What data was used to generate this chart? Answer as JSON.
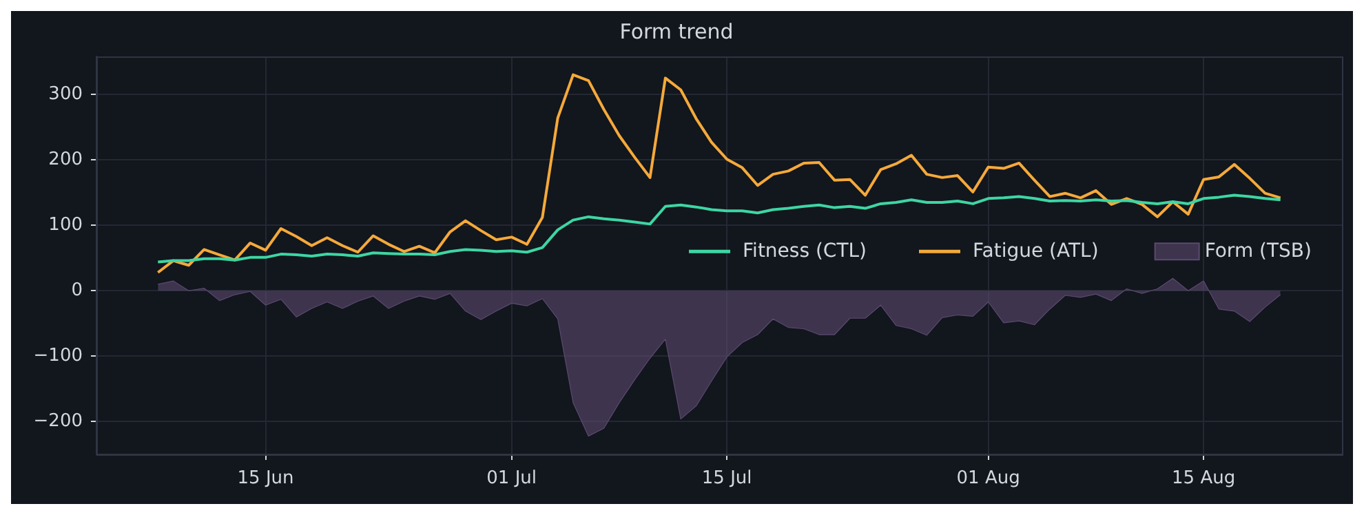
{
  "chart_data": {
    "type": "line",
    "title": "Form trend",
    "x": [
      "--06-08",
      "--06-09",
      "--06-10",
      "--06-11",
      "--06-12",
      "--06-13",
      "--06-14",
      "--06-15",
      "--06-16",
      "--06-17",
      "--06-18",
      "--06-19",
      "--06-20",
      "--06-21",
      "--06-22",
      "--06-23",
      "--06-24",
      "--06-25",
      "--06-26",
      "--06-27",
      "--06-28",
      "--06-29",
      "--06-30",
      "--07-01",
      "--07-02",
      "--07-03",
      "--07-04",
      "--07-05",
      "--07-06",
      "--07-07",
      "--07-08",
      "--07-09",
      "--07-10",
      "--07-11",
      "--07-12",
      "--07-13",
      "--07-14",
      "--07-15",
      "--07-16",
      "--07-17",
      "--07-18",
      "--07-19",
      "--07-20",
      "--07-21",
      "--07-22",
      "--07-23",
      "--07-24",
      "--07-25",
      "--07-26",
      "--07-27",
      "--07-28",
      "--07-29",
      "--07-30",
      "--07-31",
      "--08-01",
      "--08-02",
      "--08-03",
      "--08-04",
      "--08-05",
      "--08-06",
      "--08-07",
      "--08-08",
      "--08-09",
      "--08-10",
      "--08-11",
      "--08-12",
      "--08-13",
      "--08-14",
      "--08-15",
      "--08-16",
      "--08-17",
      "--08-18",
      "--08-19",
      "--08-20"
    ],
    "series": [
      {
        "name": "Fitness (CTL)",
        "type": "line",
        "color": "#3dd6a3",
        "values": [
          44,
          46,
          46,
          49,
          49,
          47,
          51,
          51,
          56,
          55,
          53,
          56,
          55,
          53,
          58,
          57,
          56,
          56,
          55,
          60,
          63,
          62,
          60,
          61,
          59,
          66,
          93,
          108,
          113,
          110,
          108,
          105,
          102,
          129,
          131,
          128,
          124,
          122,
          122,
          119,
          124,
          126,
          129,
          131,
          127,
          129,
          126,
          133,
          135,
          139,
          135,
          135,
          137,
          133,
          141,
          142,
          144,
          141,
          137,
          138,
          137,
          139,
          137,
          138,
          135,
          133,
          136,
          133,
          141,
          143,
          146,
          144,
          141,
          139
        ]
      },
      {
        "name": "Fatigue (ATL)",
        "type": "line",
        "color": "#f5a93a",
        "values": [
          28,
          46,
          39,
          63,
          55,
          47,
          73,
          62,
          95,
          83,
          69,
          81,
          69,
          59,
          84,
          71,
          60,
          68,
          58,
          90,
          107,
          92,
          78,
          82,
          71,
          112,
          264,
          330,
          321,
          277,
          237,
          204,
          173,
          325,
          307,
          263,
          227,
          201,
          188,
          161,
          178,
          183,
          195,
          196,
          169,
          170,
          146,
          185,
          194,
          207,
          178,
          173,
          176,
          151,
          189,
          187,
          195,
          169,
          144,
          149,
          142,
          153,
          132,
          141,
          132,
          113,
          136,
          117,
          170,
          174,
          193,
          172,
          149,
          142
        ]
      },
      {
        "name": "Form (TSB)",
        "type": "area",
        "color": "#5b4a70",
        "values": [
          10,
          15,
          0,
          4,
          -15,
          -6,
          -1,
          -22,
          -13,
          -40,
          -27,
          -17,
          -27,
          -16,
          -8,
          -27,
          -16,
          -8,
          -13,
          -4,
          -31,
          -44,
          -31,
          -19,
          -23,
          -12,
          -43,
          -171,
          -222,
          -210,
          -171,
          -136,
          -103,
          -74,
          -196,
          -176,
          -138,
          -101,
          -79,
          -67,
          -43,
          -56,
          -58,
          -67,
          -67,
          -42,
          -42,
          -22,
          -53,
          -58,
          -68,
          -41,
          -37,
          -39,
          -17,
          -49,
          -46,
          -52,
          -28,
          -7,
          -10,
          -5,
          -15,
          3,
          -4,
          3,
          19,
          0,
          15,
          -28,
          -31,
          -47,
          -25,
          -6
        ]
      }
    ],
    "xlim": [
      "--06-04",
      "--08-24"
    ],
    "xticks": [
      {
        "value": "--06-15",
        "label": "15 Jun"
      },
      {
        "value": "--07-01",
        "label": "01 Jul"
      },
      {
        "value": "--07-15",
        "label": "15 Jul"
      },
      {
        "value": "--08-01",
        "label": "01 Aug"
      },
      {
        "value": "--08-15",
        "label": "15 Aug"
      }
    ],
    "ylim": [
      -250,
      358
    ],
    "yticks": [
      {
        "value": -200,
        "label": "−200"
      },
      {
        "value": -100,
        "label": "−100"
      },
      0,
      100,
      200,
      300
    ],
    "grid": true,
    "legend": "center right",
    "marker": "none",
    "line_style": "solid"
  }
}
